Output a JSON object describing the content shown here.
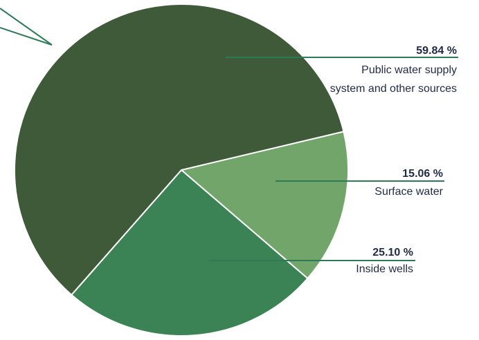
{
  "chart_data": {
    "type": "pie",
    "title": "",
    "slices": [
      {
        "label": [
          "Public water supply",
          "system and other sources"
        ],
        "value": 59.84,
        "display": "59.84 %",
        "color": "#3f5a38"
      },
      {
        "label": [
          "Surface water"
        ],
        "value": 15.06,
        "display": "15.06 %",
        "color": "#72a56a"
      },
      {
        "label": [
          "Inside wells"
        ],
        "value": 25.1,
        "display": "25.10 %",
        "color": "#3b8254"
      }
    ],
    "leader_color": "#2e7a58",
    "slice_border": "#ffffff"
  }
}
